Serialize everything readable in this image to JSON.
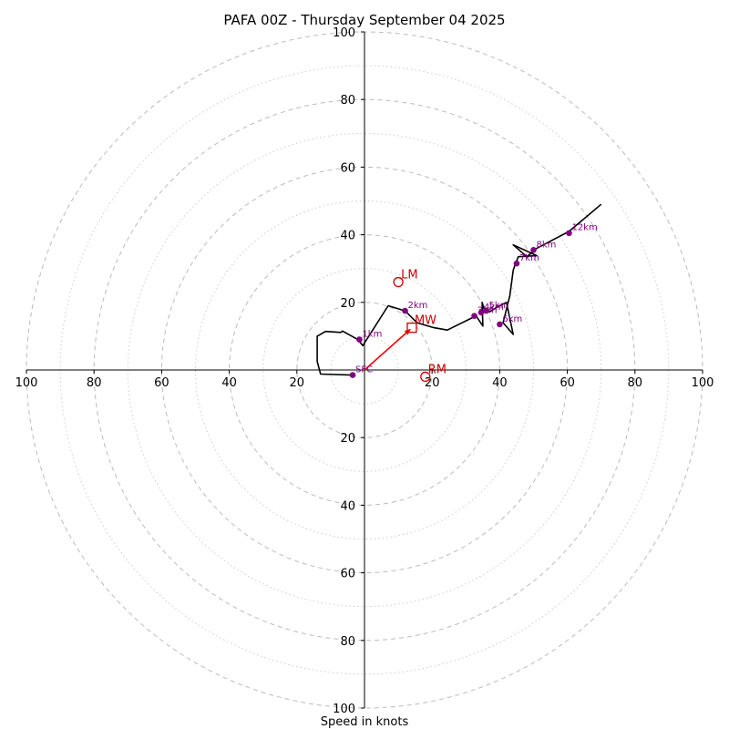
{
  "chart_data": {
    "type": "hodograph",
    "title": "PAFA 00Z - Thursday September 04 2025",
    "xlabel": "Speed in knots",
    "range": 100,
    "major_rings": [
      20,
      40,
      60,
      80,
      100
    ],
    "minor_rings": [
      10,
      30,
      50,
      70,
      90
    ],
    "ticks": {
      "right": [
        "20",
        "40",
        "60",
        "80",
        "100"
      ],
      "left": [
        "20",
        "40",
        "60",
        "80",
        "100"
      ],
      "up": [
        "20",
        "40",
        "60",
        "80",
        "100"
      ],
      "down": [
        "20",
        "40",
        "60",
        "80",
        "100"
      ]
    },
    "grid": true,
    "colors": {
      "trace": "#000000",
      "height_marker": "#800080",
      "vector": "#ff0000",
      "storm_motion": "#cc0000",
      "grid": "#bbbbbb"
    },
    "trace": [
      [
        -3.5,
        -1.5
      ],
      [
        -13,
        -1.2
      ],
      [
        -14,
        2.5
      ],
      [
        -14,
        10
      ],
      [
        -11.5,
        11.4
      ],
      [
        -7,
        11.1
      ],
      [
        -6.5,
        11.5
      ],
      [
        -2,
        9
      ],
      [
        -0.5,
        7.2
      ],
      [
        7,
        19
      ],
      [
        12,
        17.5
      ],
      [
        15.5,
        14
      ],
      [
        20.5,
        12.5
      ],
      [
        24.5,
        11.8
      ],
      [
        33,
        16
      ],
      [
        35,
        13
      ],
      [
        34.8,
        20
      ],
      [
        35.5,
        17.5
      ],
      [
        37,
        17.2
      ],
      [
        39,
        18.5
      ],
      [
        42,
        20
      ],
      [
        44,
        10.5
      ],
      [
        41,
        14
      ],
      [
        43,
        22
      ],
      [
        44,
        29.5
      ],
      [
        44.5,
        31
      ],
      [
        45.5,
        33.5
      ],
      [
        51,
        33.8
      ],
      [
        44,
        37
      ],
      [
        48,
        33.5
      ],
      [
        51,
        36
      ],
      [
        60.5,
        41
      ],
      [
        70,
        49
      ]
    ],
    "height_markers": [
      {
        "label": "SFC",
        "u": -3.5,
        "v": -1.5
      },
      {
        "label": "1km",
        "u": -1.5,
        "v": 9
      },
      {
        "label": "2km",
        "u": 12,
        "v": 17.5
      },
      {
        "label": "3km",
        "u": 32.5,
        "v": 16
      },
      {
        "label": "4km",
        "u": 34.5,
        "v": 17
      },
      {
        "label": "5km",
        "u": 36,
        "v": 17.5
      },
      {
        "label": "6km",
        "u": 40,
        "v": 13.5
      },
      {
        "label": "7km",
        "u": 45,
        "v": 31.5
      },
      {
        "label": "8km",
        "u": 50,
        "v": 35.5
      },
      {
        "label": "12km",
        "u": 60.5,
        "v": 40.5
      }
    ],
    "storm_vectors": [
      {
        "label": "LM",
        "u": 10,
        "v": 26,
        "marker": "circle"
      },
      {
        "label": "RM",
        "u": 18,
        "v": -2,
        "marker": "circle"
      },
      {
        "label": "MW",
        "u": 14,
        "v": 12.5,
        "marker": "square"
      }
    ],
    "shear_vector": {
      "from": [
        0,
        0
      ],
      "to": [
        13.5,
        12
      ]
    }
  }
}
